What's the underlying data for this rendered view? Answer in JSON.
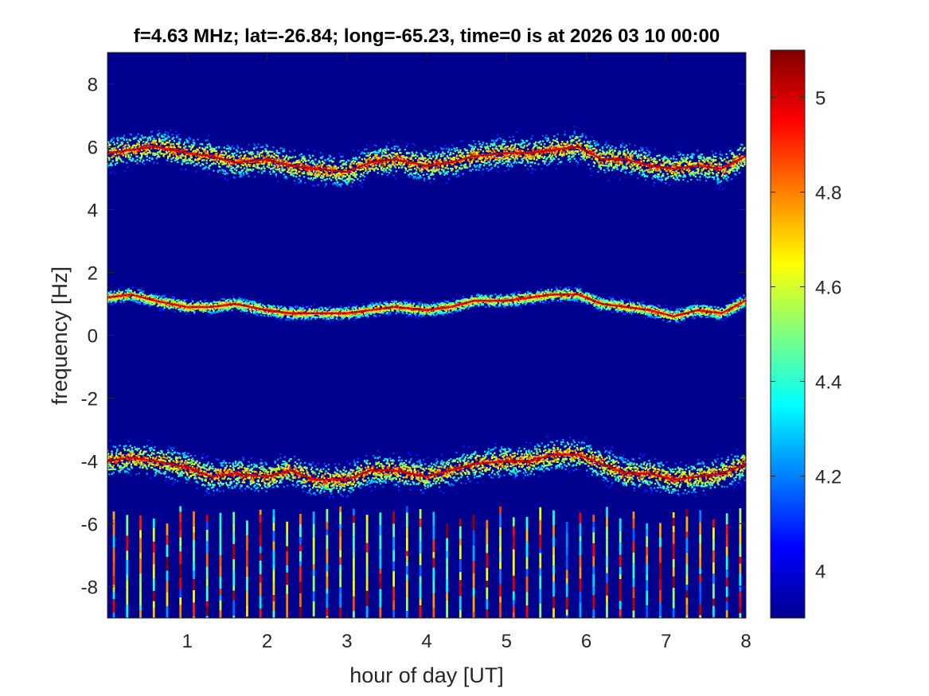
{
  "chart_data": {
    "type": "heatmap",
    "title": "f=4.63 MHz;  lat=-26.84; long=-65.23, time=0 is at 2026 03 10 00:00",
    "xlabel": "hour of day [UT]",
    "ylabel": "frequency [Hz]",
    "xlim": [
      0,
      8
    ],
    "ylim": [
      -9,
      9
    ],
    "x_ticks": [
      1,
      2,
      3,
      4,
      5,
      6,
      7,
      8
    ],
    "x_tick_labels": [
      "1",
      "2",
      "3",
      "4",
      "5",
      "6",
      "7",
      "8"
    ],
    "y_ticks": [
      8,
      6,
      4,
      2,
      0,
      -2,
      -4,
      -6,
      -8
    ],
    "y_tick_labels": [
      "8",
      "6",
      "4",
      "2",
      "0",
      "-2",
      "-4",
      "-6",
      "-8"
    ],
    "colorbar": {
      "colormap": "jet",
      "clim": [
        3.9,
        5.1
      ],
      "ticks": [
        4,
        4.2,
        4.4,
        4.6,
        4.8,
        5
      ],
      "tick_labels": [
        "4",
        "4.2",
        "4.4",
        "4.6",
        "4.8",
        "5"
      ]
    },
    "background_color": "#00008f",
    "series": [
      {
        "x": [
          0,
          0.3,
          0.6,
          1.0,
          1.3,
          1.6,
          2.0,
          2.3,
          2.6,
          3.0,
          3.3,
          3.6,
          4.0,
          4.3,
          4.6,
          5.0,
          5.3,
          5.6,
          5.9,
          6.2,
          6.5,
          6.8,
          7.1,
          7.4,
          7.7,
          8.0
        ],
        "y": [
          5.8,
          5.9,
          6.0,
          5.8,
          5.7,
          5.5,
          5.6,
          5.4,
          5.3,
          5.2,
          5.5,
          5.6,
          5.4,
          5.5,
          5.7,
          5.8,
          5.8,
          5.9,
          6.0,
          5.6,
          5.6,
          5.4,
          5.3,
          5.4,
          5.3,
          5.7
        ],
        "spread": 0.35
      },
      {
        "x": [
          0,
          0.3,
          0.6,
          1.0,
          1.3,
          1.6,
          2.0,
          2.3,
          2.6,
          3.0,
          3.3,
          3.6,
          4.0,
          4.3,
          4.6,
          5.0,
          5.3,
          5.6,
          5.9,
          6.2,
          6.5,
          6.8,
          7.1,
          7.4,
          7.7,
          8.0
        ],
        "y": [
          1.2,
          1.3,
          1.1,
          0.9,
          0.9,
          1.0,
          0.8,
          0.7,
          0.7,
          0.7,
          0.8,
          0.9,
          0.8,
          0.9,
          1.1,
          1.1,
          1.2,
          1.3,
          1.3,
          1.0,
          0.9,
          0.8,
          0.6,
          0.8,
          0.7,
          1.1
        ],
        "spread": 0.15
      },
      {
        "x": [
          0,
          0.3,
          0.6,
          1.0,
          1.3,
          1.6,
          2.0,
          2.3,
          2.6,
          3.0,
          3.3,
          3.6,
          4.0,
          4.3,
          4.6,
          5.0,
          5.3,
          5.6,
          5.9,
          6.2,
          6.5,
          6.8,
          7.1,
          7.4,
          7.7,
          8.0
        ],
        "y": [
          -4.0,
          -3.9,
          -4.0,
          -4.2,
          -4.5,
          -4.4,
          -4.5,
          -4.3,
          -4.6,
          -4.6,
          -4.3,
          -4.3,
          -4.5,
          -4.3,
          -4.1,
          -4.0,
          -4.0,
          -3.8,
          -3.8,
          -4.1,
          -4.4,
          -4.4,
          -4.6,
          -4.5,
          -4.4,
          -4.1
        ],
        "spread": 0.35
      }
    ],
    "stripes": {
      "x_start": 0.08,
      "x_step": 0.167,
      "count": 48,
      "y_range": [
        -9,
        -5.7
      ]
    }
  }
}
